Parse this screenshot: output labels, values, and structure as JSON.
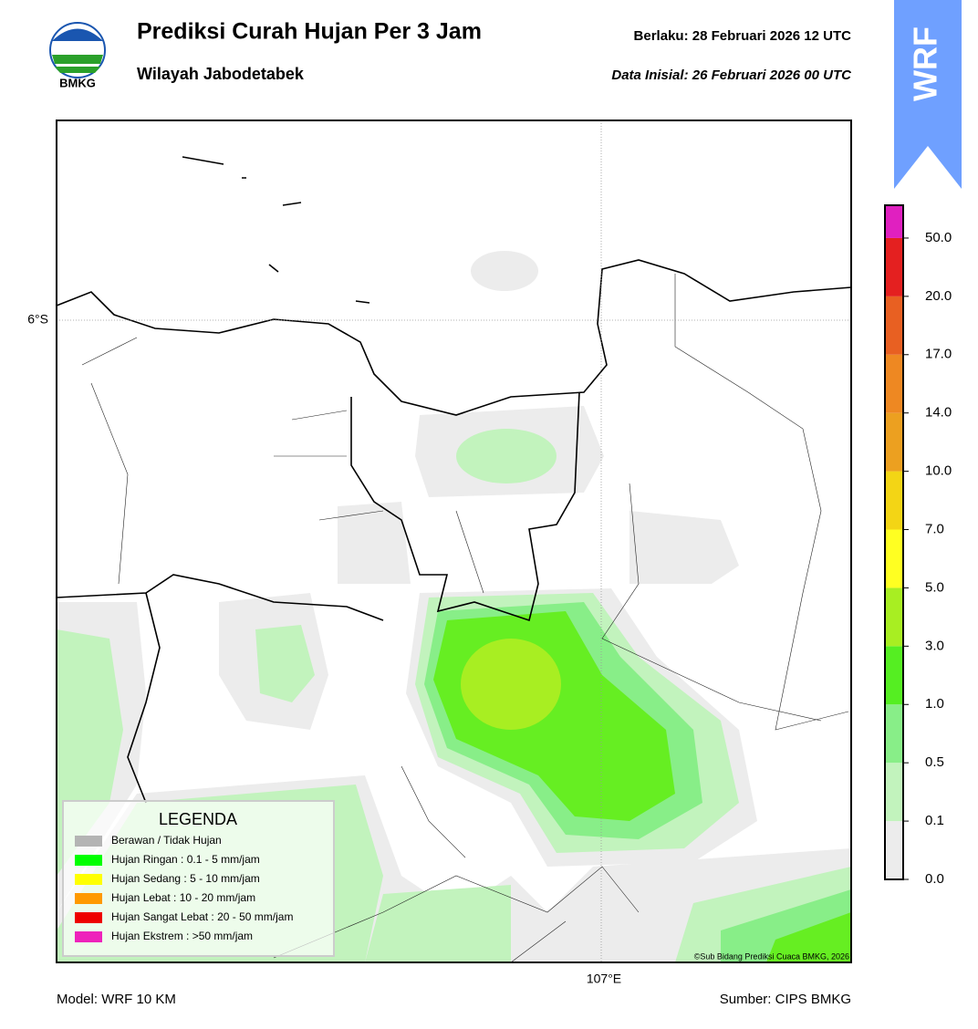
{
  "header": {
    "title": "Prediksi Curah Hujan Per 3 Jam",
    "subtitle": "Wilayah Jabodetabek",
    "valid": "Berlaku:  28 Februari 2026 12 UTC",
    "initial": "Data Inisial:  26 Februari 2026 00 UTC",
    "logo": "BMKG",
    "badge": "WRF"
  },
  "map": {
    "lat_label": "6°S",
    "lon_label": "107°E",
    "credit": "©Sub Bidang Prediksi Cuaca BMKG, 2026"
  },
  "legend": {
    "title": "LEGENDA",
    "items": [
      {
        "label": "Berawan / Tidak Hujan",
        "color": "#b4b4b4"
      },
      {
        "label": "Hujan Ringan : 0.1 - 5 mm/jam",
        "color": "#00ff00"
      },
      {
        "label": "Hujan Sedang : 5 - 10 mm/jam",
        "color": "#ffff00"
      },
      {
        "label": "Hujan Lebat : 10 - 20 mm/jam",
        "color": "#ff9900"
      },
      {
        "label": "Hujan Sangat Lebat : 20 - 50 mm/jam",
        "color": "#ee0000"
      },
      {
        "label": "Hujan Ekstrem : >50 mm/jam",
        "color": "#ee22bb"
      }
    ]
  },
  "colorbar": {
    "ticks": [
      {
        "value": 0,
        "label": "0.0"
      },
      {
        "value": 0.1,
        "label": "0.1"
      },
      {
        "value": 0.5,
        "label": "0.5"
      },
      {
        "value": 1,
        "label": "1.0"
      },
      {
        "value": 3,
        "label": "3.0"
      },
      {
        "value": 5,
        "label": "5.0"
      },
      {
        "value": 7,
        "label": "7.0"
      },
      {
        "value": 10,
        "label": "10.0"
      },
      {
        "value": 14,
        "label": "14.0"
      },
      {
        "value": 17,
        "label": "17.0"
      },
      {
        "value": 20,
        "label": "20.0"
      },
      {
        "value": 50,
        "label": "50.0"
      }
    ],
    "colors": [
      "#ececec",
      "#c2f3bd",
      "#88ee88",
      "#55ee22",
      "#a8ee22",
      "#ffff22",
      "#f3d515",
      "#eca020",
      "#ee8822",
      "#e86022",
      "#e42020",
      "#e020c0"
    ]
  },
  "footer": {
    "model": "Model: WRF 10 KM",
    "source": "Sumber: CIPS BMKG"
  }
}
